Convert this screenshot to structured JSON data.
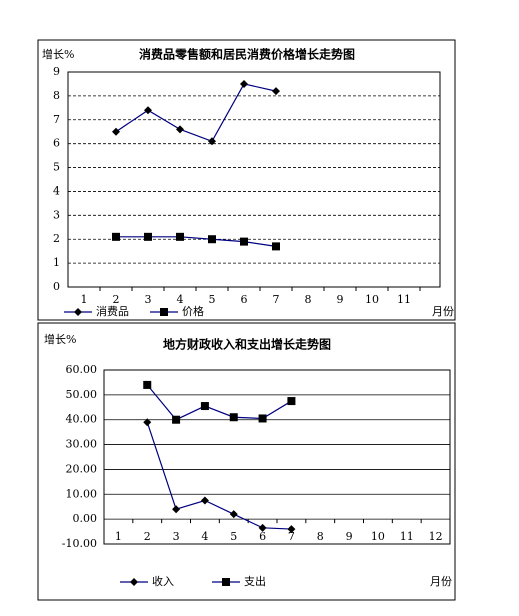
{
  "chart_data": [
    {
      "type": "line",
      "title": "消费品零售额和居民消费价格增长走势图",
      "ylabel": "增长%",
      "xlabel": "月份",
      "categories": [
        "1",
        "2",
        "3",
        "4",
        "5",
        "6",
        "7",
        "8",
        "9",
        "10",
        "11"
      ],
      "series": [
        {
          "name": "消费品",
          "color": "#000080",
          "marker": "diamond",
          "values": [
            null,
            6.5,
            7.4,
            6.6,
            6.1,
            8.5,
            8.2,
            null,
            null,
            null,
            null
          ]
        },
        {
          "name": "价格",
          "color": "#000080",
          "marker": "square",
          "values": [
            null,
            2.1,
            2.1,
            2.1,
            2.0,
            1.9,
            1.7,
            null,
            null,
            null,
            null
          ]
        }
      ],
      "ylim": [
        0,
        9
      ],
      "yticks": [
        0,
        1,
        2,
        3,
        4,
        5,
        6,
        7,
        8,
        9
      ],
      "grid": "dashed"
    },
    {
      "type": "line",
      "title": "地方财政收入和支出增长走势图",
      "ylabel": "增长%",
      "xlabel": "月份",
      "categories": [
        "1",
        "2",
        "3",
        "4",
        "5",
        "6",
        "7",
        "8",
        "9",
        "10",
        "11",
        "12"
      ],
      "series": [
        {
          "name": "收入",
          "color": "#000080",
          "marker": "diamond",
          "values": [
            null,
            39,
            4,
            7.5,
            2,
            -3.5,
            -4,
            null,
            null,
            null,
            null,
            null
          ]
        },
        {
          "name": "支出",
          "color": "#000080",
          "marker": "square",
          "values": [
            null,
            54,
            40,
            45.5,
            41,
            40.5,
            47.5,
            null,
            null,
            null,
            null,
            null
          ]
        }
      ],
      "ylim": [
        -10,
        60
      ],
      "yticks": [
        {
          "value": -10,
          "label": "-10.00"
        },
        {
          "value": 0,
          "label": "0.00"
        },
        {
          "value": 10,
          "label": "10.00"
        },
        {
          "value": 20,
          "label": "20.00"
        },
        {
          "value": 30,
          "label": "30.00"
        },
        {
          "value": 40,
          "label": "40.00"
        },
        {
          "value": 50,
          "label": "50.00"
        },
        {
          "value": 60,
          "label": "60.00"
        }
      ],
      "grid": "solid"
    }
  ]
}
